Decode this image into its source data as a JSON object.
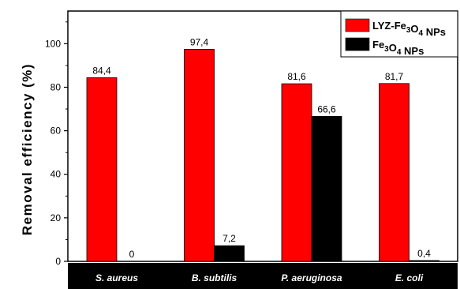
{
  "chart_data": {
    "type": "bar",
    "categories": [
      "S. aureus",
      "B. subtilis",
      "P. aeruginosa",
      "E. coli"
    ],
    "series": [
      {
        "name": "LYZ-Fe3O4 NPs",
        "label_main": "LYZ-Fe",
        "label_sub": "3",
        "label_mid": "O",
        "label_sub2": "4",
        "label_end": " NPs",
        "color": "#ff0000",
        "values": [
          84.4,
          97.4,
          81.6,
          81.7
        ],
        "value_labels": [
          "84,4",
          "97,4",
          "81,6",
          "81,7"
        ]
      },
      {
        "name": "Fe3O4 NPs",
        "label_main": "Fe",
        "label_sub": "3",
        "label_mid": "O",
        "label_sub2": "4",
        "label_end": " NPs",
        "color": "#000000",
        "values": [
          0,
          7.2,
          66.6,
          0.4
        ],
        "value_labels": [
          "0",
          "7,2",
          "66,6",
          "0,4"
        ]
      }
    ],
    "ylabel": "Removal efficiency (%)",
    "xlabel": "",
    "ylim": [
      0,
      115
    ],
    "yticks": [
      0,
      20,
      40,
      60,
      80,
      100
    ],
    "ytick_labels": [
      "0",
      "20",
      "40",
      "60",
      "80",
      "100"
    ],
    "legend_position": "top-right",
    "category_band_color": "#000000"
  }
}
